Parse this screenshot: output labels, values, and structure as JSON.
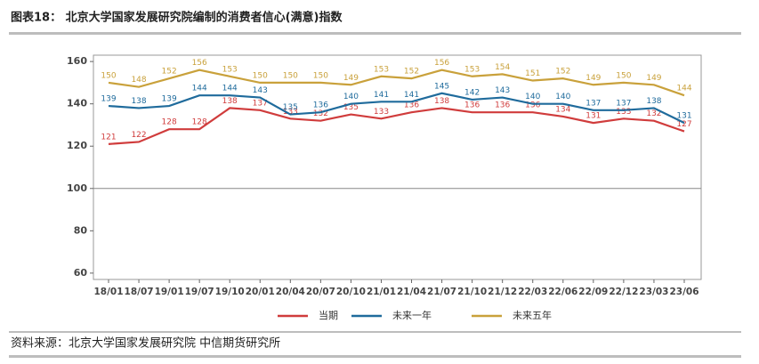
{
  "chart_data": {
    "type": "line",
    "title": "图表18： 北京大学国家发展研究院编制的消费者信心(满意)指数",
    "source": "资料来源：北京大学国家发展研究院 中信期货研究所",
    "categories": [
      "18/01",
      "18/07",
      "19/01",
      "19/07",
      "19/10",
      "20/01",
      "20/04",
      "20/07",
      "20/10",
      "21/01",
      "21/04",
      "21/07",
      "21/10",
      "21/12",
      "22/03",
      "22/06",
      "22/09",
      "22/12",
      "23/03",
      "23/06"
    ],
    "series": [
      {
        "name": "当期",
        "color": "#d03c3c",
        "values": [
          121,
          122,
          128,
          128,
          138,
          137,
          133,
          132,
          135,
          133,
          136,
          138,
          136,
          136,
          136,
          134,
          131,
          133,
          132,
          127
        ]
      },
      {
        "name": "未来一年",
        "color": "#1f6b9c",
        "values": [
          139,
          138,
          139,
          144,
          144,
          143,
          135,
          136,
          140,
          141,
          141,
          145,
          142,
          143,
          140,
          140,
          137,
          137,
          138,
          131
        ]
      },
      {
        "name": "未来五年",
        "color": "#c9a13b",
        "values": [
          150,
          148,
          152,
          156,
          153,
          150,
          150,
          150,
          149,
          153,
          152,
          156,
          153,
          154,
          151,
          152,
          149,
          150,
          149,
          144
        ]
      }
    ],
    "ylim": [
      57,
      163
    ],
    "yticks": [
      60,
      80,
      100,
      120,
      140,
      160
    ],
    "reference_line": 100,
    "grid": false,
    "legend": "bottom"
  }
}
